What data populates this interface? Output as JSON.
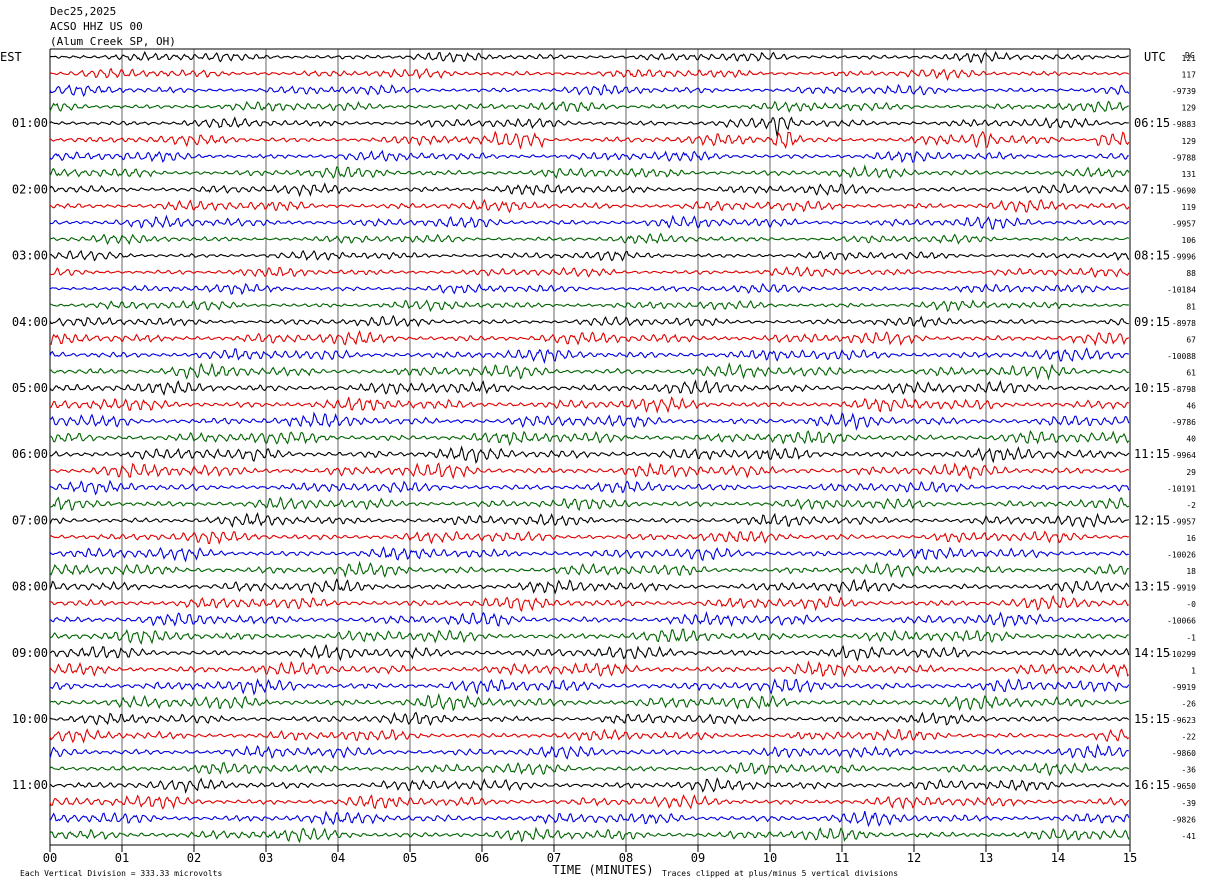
{
  "header": {
    "date": "Dec25,2025",
    "station": "ACSO HHZ US 00",
    "location": "(Alum Creek SP, OH)"
  },
  "left_label": "EST",
  "right_label": "UTC",
  "dc_label": "DC",
  "footer": {
    "scale": "Each Vertical Division =  333.33 microvolts",
    "xlabel": "TIME (MINUTES)",
    "clip_note": "Traces clipped at plus/minus 5 vertical divisions"
  },
  "colors": {
    "trace_cycle": [
      "#000000",
      "#e00000",
      "#0000e0",
      "#006400"
    ],
    "grid": "#000000"
  },
  "chart_data": {
    "type": "line",
    "title": "ACSO HHZ US 00 (Alum Creek SP, OH)",
    "xlabel": "TIME (MINUTES)",
    "xlim": [
      0,
      15
    ],
    "x_ticks": [
      "00",
      "01",
      "02",
      "03",
      "04",
      "05",
      "06",
      "07",
      "08",
      "09",
      "10",
      "11",
      "12",
      "13",
      "14",
      "15"
    ],
    "rows_per_hour": 4,
    "row_count": 48,
    "est_hour_labels": [
      "01:00",
      "02:00",
      "03:00",
      "04:00",
      "05:00",
      "06:00",
      "07:00",
      "08:00",
      "09:00",
      "10:00",
      "11:00"
    ],
    "utc_hour_labels": [
      "06:15",
      "07:15",
      "08:15",
      "09:15",
      "10:15",
      "11:15",
      "12:15",
      "13:15",
      "14:15",
      "15:15",
      "16:15"
    ],
    "dc_offsets": [
      "121",
      "117",
      "-9739",
      "129",
      "-9883",
      "129",
      "-9788",
      "131",
      "-9690",
      "119",
      "-9957",
      "106",
      "-9996",
      "88",
      "-10184",
      "81",
      "-8978",
      "67",
      "-10088",
      "61",
      "-8798",
      "46",
      "-9786",
      "40",
      "-9964",
      "29",
      "-10191",
      "-2",
      "-9957",
      "16",
      "-10026",
      "18",
      "-9919",
      "-0",
      "-10066",
      "-1",
      "-10299",
      "1",
      "-9919",
      "-26",
      "-9623",
      "-22",
      "-9860",
      "-36",
      "-9650",
      "-39",
      "-9826",
      "-41"
    ],
    "amplitude_unit": "microvolts per vertical division: 333.33",
    "events": [
      {
        "row": 4,
        "minute": 10.15,
        "note": "spike"
      },
      {
        "row": 5,
        "minute": 10.2,
        "note": "spike"
      },
      {
        "row": 5,
        "minute": 12.95,
        "note": "spike"
      },
      {
        "row": 5,
        "minute": 14.9,
        "note": "burst"
      },
      {
        "row": 5,
        "minute": 6.5,
        "note": "burst"
      }
    ]
  }
}
